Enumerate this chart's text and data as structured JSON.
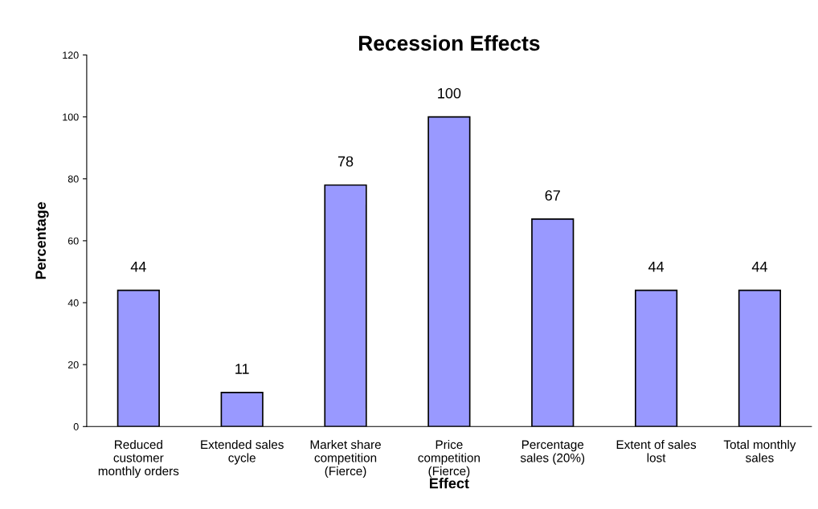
{
  "chart_data": {
    "type": "bar",
    "title": "Recession Effects",
    "xlabel": "Effect",
    "ylabel": "Percentage",
    "categories": [
      "Reduced\ncustomer\nmonthly orders",
      "Extended sales\ncycle",
      "Market share\ncompetition\n(Fierce)",
      "Price\ncompetition\n(Fierce)",
      "Percentage\nsales (20%)",
      "Extent of sales\nlost",
      "Total monthly\nsales"
    ],
    "values": [
      44,
      11,
      78,
      100,
      67,
      44,
      44
    ],
    "color": "#9999ff",
    "ylim": [
      0,
      120
    ],
    "yticks": [
      0,
      20,
      40,
      60,
      80,
      100,
      120
    ],
    "grid": false,
    "data_labels": true
  }
}
